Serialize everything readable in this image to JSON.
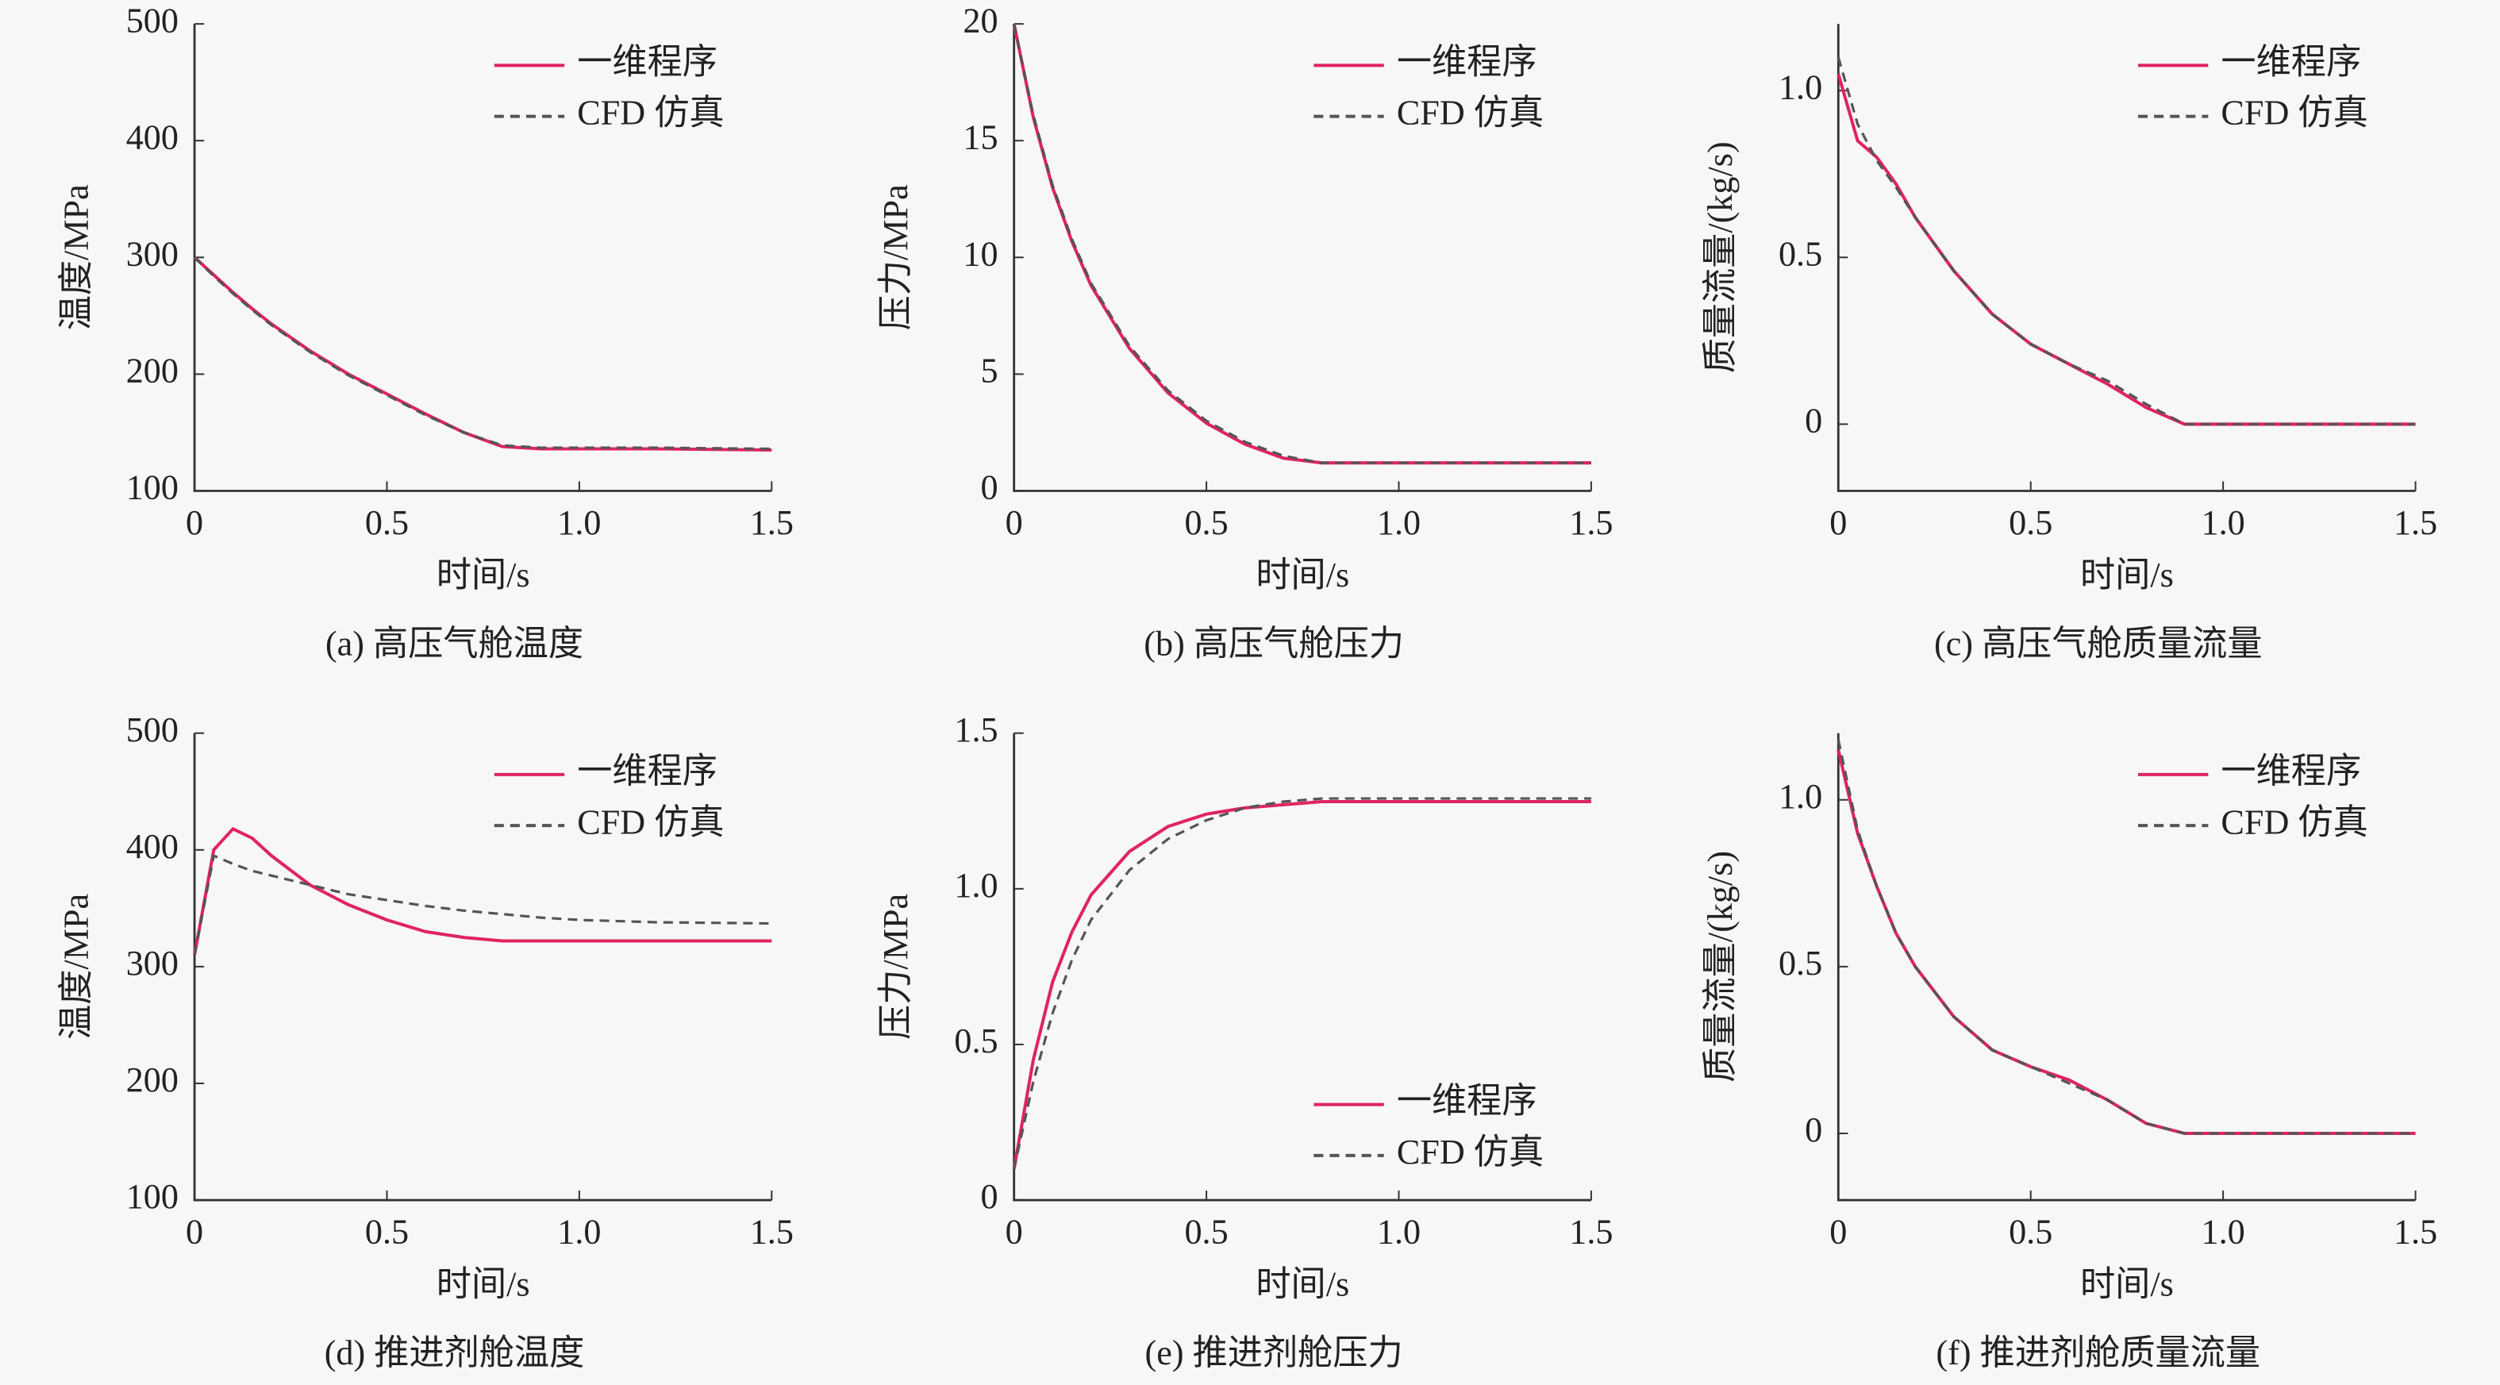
{
  "chart_data": [
    {
      "type": "line",
      "caption": "(a) 高压气舱温度",
      "xlabel": "时间/s",
      "ylabel": "温度/MPa",
      "xlim": [
        0,
        1.5
      ],
      "ylim": [
        100,
        500
      ],
      "xticks": [
        0,
        0.5,
        {
          "value": 1,
          "label": "1.0"
        },
        1.5
      ],
      "yticks": [
        100,
        200,
        300,
        400,
        500
      ],
      "legend": "upper right",
      "x": [
        0,
        0.05,
        0.1,
        0.15,
        0.2,
        0.3,
        0.4,
        0.5,
        0.6,
        0.7,
        0.8,
        0.9,
        1.0,
        1.2,
        1.5
      ],
      "series": [
        {
          "name": "一维程序",
          "color": "#e0245e",
          "line_style": "solid",
          "values": [
            300,
            285,
            270,
            256,
            243,
            220,
            200,
            183,
            166,
            150,
            138,
            136,
            136,
            136,
            135
          ]
        },
        {
          "name": "CFD 仿真",
          "color": "#555555",
          "line_style": "dashed",
          "values": [
            300,
            284,
            269,
            255,
            242,
            219,
            199,
            182,
            165,
            150,
            139,
            137,
            137,
            137,
            136
          ]
        }
      ]
    },
    {
      "type": "line",
      "caption": "(b)  高压气舱压力",
      "xlabel": "时间/s",
      "ylabel": "压力/MPa",
      "xlim": [
        0,
        1.5
      ],
      "ylim": [
        0,
        20
      ],
      "xticks": [
        0,
        0.5,
        {
          "value": 1,
          "label": "1.0"
        },
        1.5
      ],
      "yticks": [
        0,
        5,
        10,
        15,
        20
      ],
      "legend": "upper right",
      "x": [
        0,
        0.05,
        0.1,
        0.15,
        0.2,
        0.3,
        0.4,
        0.5,
        0.6,
        0.7,
        0.8,
        0.9,
        1.0,
        1.2,
        1.5
      ],
      "series": [
        {
          "name": "一维程序",
          "color": "#e0245e",
          "line_style": "solid",
          "values": [
            20,
            16,
            13,
            10.7,
            8.8,
            6.1,
            4.2,
            2.9,
            2,
            1.4,
            1.2,
            1.2,
            1.2,
            1.2,
            1.2
          ]
        },
        {
          "name": "CFD 仿真",
          "color": "#555555",
          "line_style": "dashed",
          "values": [
            20,
            16.1,
            13.1,
            10.8,
            8.9,
            6.2,
            4.3,
            3,
            2.1,
            1.5,
            1.2,
            1.2,
            1.2,
            1.2,
            1.2
          ]
        }
      ]
    },
    {
      "type": "line",
      "caption": "(c)  高压气舱质量流量",
      "xlabel": "时间/s",
      "ylabel": "质量流量/(kg/s)",
      "xlim": [
        0,
        1.5
      ],
      "ylim": [
        -0.2,
        1.2
      ],
      "xticks": [
        0,
        0.5,
        {
          "value": 1,
          "label": "1.0"
        },
        1.5
      ],
      "yticks": [
        0,
        0.5,
        {
          "value": 1,
          "label": "1.0"
        }
      ],
      "legend": "upper right",
      "x": [
        0,
        0.05,
        0.1,
        0.15,
        0.2,
        0.3,
        0.4,
        0.5,
        0.6,
        0.7,
        0.8,
        0.9,
        1.0,
        1.2,
        1.5
      ],
      "series": [
        {
          "name": "一维程序",
          "color": "#e0245e",
          "line_style": "solid",
          "values": [
            1.05,
            0.85,
            0.8,
            0.72,
            0.62,
            0.46,
            0.33,
            0.24,
            0.18,
            0.12,
            0.05,
            0,
            0,
            0,
            0
          ]
        },
        {
          "name": "CFD 仿真",
          "color": "#555555",
          "line_style": "dashed",
          "values": [
            1.1,
            0.9,
            0.79,
            0.71,
            0.62,
            0.46,
            0.33,
            0.24,
            0.18,
            0.13,
            0.06,
            0,
            0,
            0,
            0
          ]
        }
      ]
    },
    {
      "type": "line",
      "caption": "(d) 推进剂舱温度",
      "xlabel": "时间/s",
      "ylabel": "温度/MPa",
      "xlim": [
        0,
        1.5
      ],
      "ylim": [
        100,
        500
      ],
      "xticks": [
        0,
        0.5,
        {
          "value": 1,
          "label": "1.0"
        },
        1.5
      ],
      "yticks": [
        100,
        200,
        300,
        400,
        500
      ],
      "legend": "upper right",
      "x": [
        0,
        0.05,
        0.1,
        0.15,
        0.2,
        0.3,
        0.4,
        0.5,
        0.6,
        0.7,
        0.8,
        0.9,
        1.0,
        1.2,
        1.5
      ],
      "series": [
        {
          "name": "一维程序",
          "color": "#e0245e",
          "line_style": "solid",
          "values": [
            310,
            400,
            418,
            410,
            395,
            370,
            353,
            340,
            330,
            325,
            322,
            322,
            322,
            322,
            322
          ]
        },
        {
          "name": "CFD 仿真",
          "color": "#555555",
          "line_style": "dashed",
          "values": [
            310,
            395,
            388,
            382,
            378,
            370,
            362,
            357,
            352,
            348,
            345,
            342,
            340,
            338,
            337
          ]
        }
      ]
    },
    {
      "type": "line",
      "caption": "(e) 推进剂舱压力",
      "xlabel": "时间/s",
      "ylabel": "压力/MPa",
      "xlim": [
        0,
        1.5
      ],
      "ylim": [
        0,
        1.5
      ],
      "xticks": [
        0,
        0.5,
        {
          "value": 1,
          "label": "1.0"
        },
        1.5
      ],
      "yticks": [
        0,
        0.5,
        {
          "value": 1,
          "label": "1.0"
        },
        1.5
      ],
      "legend": "lower right",
      "x": [
        0,
        0.05,
        0.1,
        0.15,
        0.2,
        0.3,
        0.4,
        0.5,
        0.6,
        0.7,
        0.8,
        0.9,
        1.0,
        1.2,
        1.5
      ],
      "series": [
        {
          "name": "一维程序",
          "color": "#e0245e",
          "line_style": "solid",
          "values": [
            0.1,
            0.45,
            0.7,
            0.86,
            0.98,
            1.12,
            1.2,
            1.24,
            1.26,
            1.27,
            1.28,
            1.28,
            1.28,
            1.28,
            1.28
          ]
        },
        {
          "name": "CFD 仿真",
          "color": "#555555",
          "line_style": "dashed",
          "values": [
            0.1,
            0.38,
            0.6,
            0.77,
            0.9,
            1.06,
            1.16,
            1.22,
            1.26,
            1.28,
            1.29,
            1.29,
            1.29,
            1.29,
            1.29
          ]
        }
      ]
    },
    {
      "type": "line",
      "caption": "(f) 推进剂舱质量流量",
      "xlabel": "时间/s",
      "ylabel": "质量流量/(kg/s)",
      "xlim": [
        0,
        1.5
      ],
      "ylim": [
        -0.2,
        1.2
      ],
      "xticks": [
        0,
        0.5,
        {
          "value": 1,
          "label": "1.0"
        },
        1.5
      ],
      "yticks": [
        0,
        0.5,
        {
          "value": 1,
          "label": "1.0"
        }
      ],
      "legend": "upper right",
      "x": [
        0,
        0.05,
        0.1,
        0.15,
        0.2,
        0.3,
        0.4,
        0.5,
        0.6,
        0.7,
        0.8,
        0.9,
        1.0,
        1.2,
        1.5
      ],
      "series": [
        {
          "name": "一维程序",
          "color": "#e0245e",
          "line_style": "solid",
          "values": [
            1.15,
            0.9,
            0.74,
            0.6,
            0.5,
            0.35,
            0.25,
            0.2,
            0.16,
            0.1,
            0.03,
            0,
            0,
            0,
            0
          ]
        },
        {
          "name": "CFD 仿真",
          "color": "#555555",
          "line_style": "dashed",
          "values": [
            1.18,
            0.91,
            0.74,
            0.6,
            0.5,
            0.35,
            0.25,
            0.2,
            0.15,
            0.1,
            0.03,
            0,
            0,
            0,
            0
          ]
        }
      ]
    }
  ]
}
